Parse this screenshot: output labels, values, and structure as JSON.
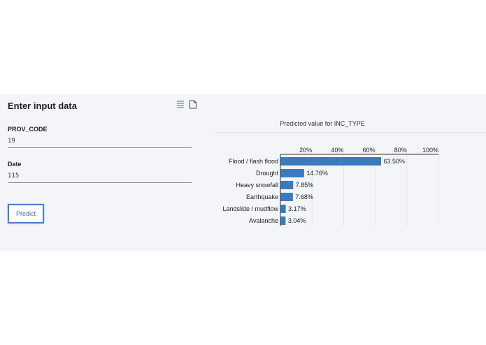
{
  "form": {
    "title": "Enter input data",
    "icons": [
      "list-icon",
      "document-icon"
    ],
    "fields": [
      {
        "label": "PROV_CODE",
        "value": "19"
      },
      {
        "label": "Date",
        "value": "115"
      }
    ],
    "predict_label": "Predict"
  },
  "chart_data": {
    "type": "bar",
    "orientation": "horizontal",
    "title": "Predicted value for INC_TYPE",
    "categories": [
      "Flood / flash flood",
      "Drought",
      "Heavy snowfall",
      "Earthquake",
      "Landslide / mudflow",
      "Avalanche"
    ],
    "values": [
      63.5,
      14.76,
      7.85,
      7.68,
      3.17,
      3.04
    ],
    "data_labels": [
      "63.50%",
      "14.76%",
      "7.85%",
      "7.68%",
      "3.17%",
      "3.04%"
    ],
    "xlim": [
      0,
      100
    ],
    "ticks": [
      "20%",
      "40%",
      "60%",
      "80%",
      "100%"
    ],
    "tick_values": [
      20,
      40,
      60,
      80,
      100
    ],
    "grid": true,
    "bar_color": "#3a7bbf"
  }
}
